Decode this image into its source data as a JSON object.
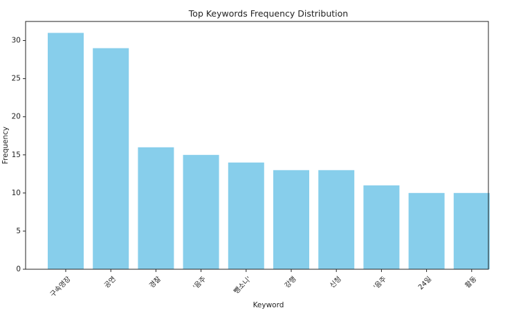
{
  "chart_data": {
    "type": "bar",
    "title": "Top Keywords Frequency Distribution",
    "xlabel": "Keyword",
    "ylabel": "Frequency",
    "categories": [
      "구속영장",
      "공연",
      "경찰",
      "'음주",
      "뺑소니'",
      "강행",
      "신청",
      "'음주",
      "24일",
      "활동"
    ],
    "values": [
      31,
      29,
      16,
      15,
      14,
      13,
      13,
      11,
      10,
      10
    ],
    "yticks": [
      "0",
      "5",
      "10",
      "15",
      "20",
      "25",
      "30"
    ],
    "ylim": [
      0,
      32.5
    ],
    "grid": false,
    "bar_color": "#87ceeb"
  }
}
